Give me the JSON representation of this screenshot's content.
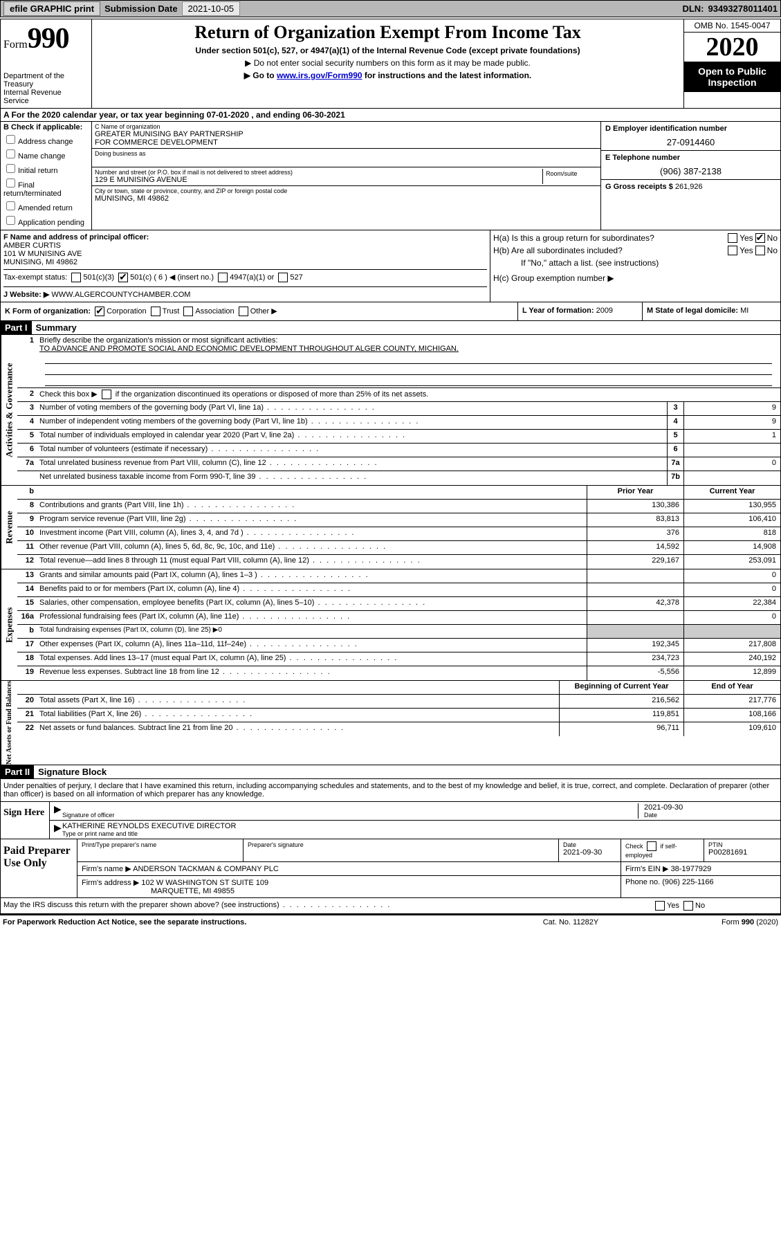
{
  "topbar": {
    "efile": "efile GRAPHIC print",
    "subdate_label": "Submission Date",
    "subdate": "2021-10-05",
    "dln_label": "DLN:",
    "dln": "93493278011401"
  },
  "header": {
    "form_label": "Form",
    "form_no": "990",
    "dept1": "Department of the Treasury",
    "dept2": "Internal Revenue Service",
    "title": "Return of Organization Exempt From Income Tax",
    "sub1": "Under section 501(c), 527, or 4947(a)(1) of the Internal Revenue Code (except private foundations)",
    "sub2": "▶ Do not enter social security numbers on this form as it may be made public.",
    "sub3_pre": "▶ Go to ",
    "sub3_link": "www.irs.gov/Form990",
    "sub3_post": " for instructions and the latest information.",
    "omb": "OMB No. 1545-0047",
    "year": "2020",
    "public1": "Open to Public",
    "public2": "Inspection"
  },
  "rowA": "A For the 2020 calendar year, or tax year beginning 07-01-2020    , and ending 06-30-2021",
  "colB": {
    "label": "B Check if applicable:",
    "opts": [
      "Address change",
      "Name change",
      "Initial return",
      "Final return/terminated",
      "Amended return",
      "Application pending"
    ]
  },
  "orgC": {
    "name_lbl": "C Name of organization",
    "name1": "GREATER MUNISING BAY PARTNERSHIP",
    "name2": "FOR COMMERCE DEVELOPMENT",
    "dba_lbl": "Doing business as",
    "street_lbl": "Number and street (or P.O. box if mail is not delivered to street address)",
    "room_lbl": "Room/suite",
    "street": "129 E MUNISING AVENUE",
    "city_lbl": "City or town, state or province, country, and ZIP or foreign postal code",
    "city": "MUNISING, MI  49862"
  },
  "colD": {
    "ein_lbl": "D Employer identification number",
    "ein": "27-0914460",
    "tel_lbl": "E Telephone number",
    "tel": "(906) 387-2138",
    "gross_lbl": "G Gross receipts $",
    "gross": "261,926"
  },
  "rowF": {
    "f_lbl": "F  Name and address of principal officer:",
    "f_name": "AMBER CURTIS",
    "f_addr1": "101 W MUNISING AVE",
    "f_addr2": "MUNISING, MI  49862",
    "tax_lbl": "Tax-exempt status:",
    "t501c3": "501(c)(3)",
    "t501c": "501(c) ( 6 ) ◀ (insert no.)",
    "t4947": "4947(a)(1) or",
    "t527": "527",
    "web_lbl": "J   Website: ▶",
    "web": "WWW.ALGERCOUNTYCHAMBER.COM",
    "Hq": "H(a)  Is this a group return for subordinates?",
    "Hb": "H(b)  Are all subordinates included?",
    "Hno": "If \"No,\" attach a list. (see instructions)",
    "Hc": "H(c)  Group exemption number ▶",
    "yes": "Yes",
    "no": "No"
  },
  "rowK": {
    "k_lbl": "K Form of organization:",
    "corp": "Corporation",
    "trust": "Trust",
    "assoc": "Association",
    "other": "Other ▶",
    "L_lbl": "L Year of formation:",
    "L_val": "2009",
    "M_lbl": "M State of legal domicile:",
    "M_val": "MI"
  },
  "part1": {
    "hdr": "Part I",
    "title": "Summary",
    "q1": "Briefly describe the organization's mission or most significant activities:",
    "a1": "TO ADVANCE AND PROMOTE SOCIAL AND ECONOMIC DEVELOPMENT THROUGHOUT ALGER COUNTY, MICHIGAN.",
    "q2": "Check this box ▶     if the organization discontinued its operations or disposed of more than 25% of its net assets."
  },
  "gov": {
    "side": "Activities & Governance",
    "rows": [
      {
        "n": "3",
        "d": "Number of voting members of the governing body (Part VI, line 1a)",
        "b": "3",
        "v": "9"
      },
      {
        "n": "4",
        "d": "Number of independent voting members of the governing body (Part VI, line 1b)",
        "b": "4",
        "v": "9"
      },
      {
        "n": "5",
        "d": "Total number of individuals employed in calendar year 2020 (Part V, line 2a)",
        "b": "5",
        "v": "1"
      },
      {
        "n": "6",
        "d": "Total number of volunteers (estimate if necessary)",
        "b": "6",
        "v": ""
      },
      {
        "n": "7a",
        "d": "Total unrelated business revenue from Part VIII, column (C), line 12",
        "b": "7a",
        "v": "0"
      },
      {
        "n": "",
        "d": "Net unrelated business taxable income from Form 990-T, line 39",
        "b": "7b",
        "v": ""
      }
    ]
  },
  "rev": {
    "side": "Revenue",
    "hdr_b": "b",
    "hdr_prior": "Prior Year",
    "hdr_curr": "Current Year",
    "rows": [
      {
        "n": "8",
        "d": "Contributions and grants (Part VIII, line 1h)",
        "p": "130,386",
        "c": "130,955"
      },
      {
        "n": "9",
        "d": "Program service revenue (Part VIII, line 2g)",
        "p": "83,813",
        "c": "106,410"
      },
      {
        "n": "10",
        "d": "Investment income (Part VIII, column (A), lines 3, 4, and 7d )",
        "p": "376",
        "c": "818"
      },
      {
        "n": "11",
        "d": "Other revenue (Part VIII, column (A), lines 5, 6d, 8c, 9c, 10c, and 11e)",
        "p": "14,592",
        "c": "14,908"
      },
      {
        "n": "12",
        "d": "Total revenue—add lines 8 through 11 (must equal Part VIII, column (A), line 12)",
        "p": "229,167",
        "c": "253,091"
      }
    ]
  },
  "exp": {
    "side": "Expenses",
    "rows": [
      {
        "n": "13",
        "d": "Grants and similar amounts paid (Part IX, column (A), lines 1–3 )",
        "p": "",
        "c": "0"
      },
      {
        "n": "14",
        "d": "Benefits paid to or for members (Part IX, column (A), line 4)",
        "p": "",
        "c": "0"
      },
      {
        "n": "15",
        "d": "Salaries, other compensation, employee benefits (Part IX, column (A), lines 5–10)",
        "p": "42,378",
        "c": "22,384"
      },
      {
        "n": "16a",
        "d": "Professional fundraising fees (Part IX, column (A), line 11e)",
        "p": "",
        "c": "0"
      },
      {
        "n": "b",
        "d": "Total fundraising expenses (Part IX, column (D), line 25) ▶0",
        "p": "—",
        "c": "—"
      },
      {
        "n": "17",
        "d": "Other expenses (Part IX, column (A), lines 11a–11d, 11f–24e)",
        "p": "192,345",
        "c": "217,808"
      },
      {
        "n": "18",
        "d": "Total expenses. Add lines 13–17 (must equal Part IX, column (A), line 25)",
        "p": "234,723",
        "c": "240,192"
      },
      {
        "n": "19",
        "d": "Revenue less expenses. Subtract line 18 from line 12",
        "p": "-5,556",
        "c": "12,899"
      }
    ]
  },
  "net": {
    "side": "Net Assets or Fund Balances",
    "hdr_prior": "Beginning of Current Year",
    "hdr_curr": "End of Year",
    "rows": [
      {
        "n": "20",
        "d": "Total assets (Part X, line 16)",
        "p": "216,562",
        "c": "217,776"
      },
      {
        "n": "21",
        "d": "Total liabilities (Part X, line 26)",
        "p": "119,851",
        "c": "108,166"
      },
      {
        "n": "22",
        "d": "Net assets or fund balances. Subtract line 21 from line 20",
        "p": "96,711",
        "c": "109,610"
      }
    ]
  },
  "part2": {
    "hdr": "Part II",
    "title": "Signature Block",
    "perjury": "Under penalties of perjury, I declare that I have examined this return, including accompanying schedules and statements, and to the best of my knowledge and belief, it is true, correct, and complete. Declaration of preparer (other than officer) is based on all information of which preparer has any knowledge."
  },
  "sign": {
    "side": "Sign Here",
    "sig_lbl": "Signature of officer",
    "date_lbl": "Date",
    "date": "2021-09-30",
    "name": "KATHERINE REYNOLDS  EXECUTIVE DIRECTOR",
    "name_lbl": "Type or print name and title"
  },
  "paid": {
    "side": "Paid Preparer Use Only",
    "h1": "Print/Type preparer's name",
    "h2": "Preparer's signature",
    "h3": "Date",
    "h3v": "2021-09-30",
    "h4": "Check       if self-employed",
    "h5": "PTIN",
    "h5v": "P00281691",
    "firm_lbl": "Firm's name    ▶",
    "firm": "ANDERSON TACKMAN & COMPANY PLC",
    "ein_lbl": "Firm's EIN ▶",
    "ein": "38-1977929",
    "addr_lbl": "Firm's address ▶",
    "addr1": "102 W WASHINGTON ST SUITE 109",
    "addr2": "MARQUETTE, MI  49855",
    "ph_lbl": "Phone no.",
    "ph": "(906) 225-1166",
    "discuss": "May the IRS discuss this return with the preparer shown above? (see instructions)"
  },
  "footer": {
    "left": "For Paperwork Reduction Act Notice, see the separate instructions.",
    "mid": "Cat. No. 11282Y",
    "right": "Form 990 (2020)"
  }
}
